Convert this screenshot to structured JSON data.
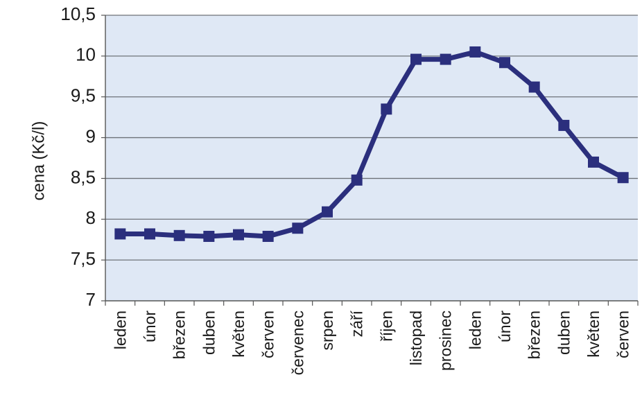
{
  "chart_data": {
    "type": "line",
    "title": "",
    "xlabel": "",
    "ylabel": "cena (Kč/l)",
    "categories": [
      "leden",
      "únor",
      "březen",
      "duben",
      "květen",
      "červen",
      "červenec",
      "srpen",
      "září",
      "říjen",
      "listopad",
      "prosinec",
      "leden",
      "únor",
      "březen",
      "duben",
      "květen",
      "červen"
    ],
    "series": [
      {
        "values": [
          7.82,
          7.82,
          7.8,
          7.79,
          7.81,
          7.79,
          7.89,
          8.09,
          8.48,
          9.35,
          9.96,
          9.96,
          10.05,
          9.92,
          9.62,
          9.15,
          8.7,
          8.51
        ]
      }
    ],
    "ylim": [
      7,
      10.5
    ],
    "yticks": [
      "7",
      "7,5",
      "8",
      "8,5",
      "9",
      "9,5",
      "10",
      "10,5"
    ],
    "grid": true,
    "line_color": "#2b2f7d",
    "plot_background": "#dfe8f5",
    "gridline_color": "#6e7278"
  }
}
